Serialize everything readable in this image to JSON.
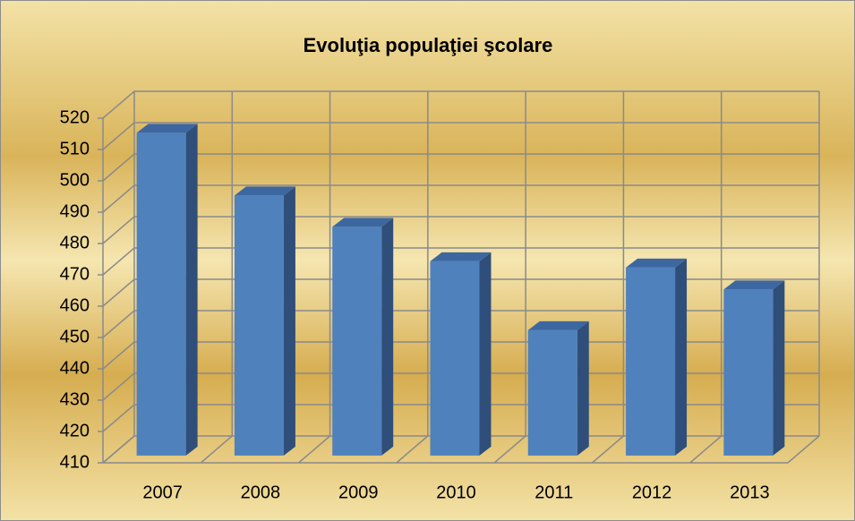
{
  "chart_data": {
    "type": "bar",
    "title": "Evoluţia populaţiei şcolare",
    "categories": [
      "2007",
      "2008",
      "2009",
      "2010",
      "2011",
      "2012",
      "2013"
    ],
    "values": [
      513,
      493,
      483,
      472,
      450,
      470,
      463
    ],
    "color": "#4f81bd",
    "ylim": [
      410,
      520
    ],
    "yticks": [
      410,
      420,
      430,
      440,
      450,
      460,
      470,
      480,
      490,
      500,
      510,
      520
    ],
    "grid": true
  }
}
